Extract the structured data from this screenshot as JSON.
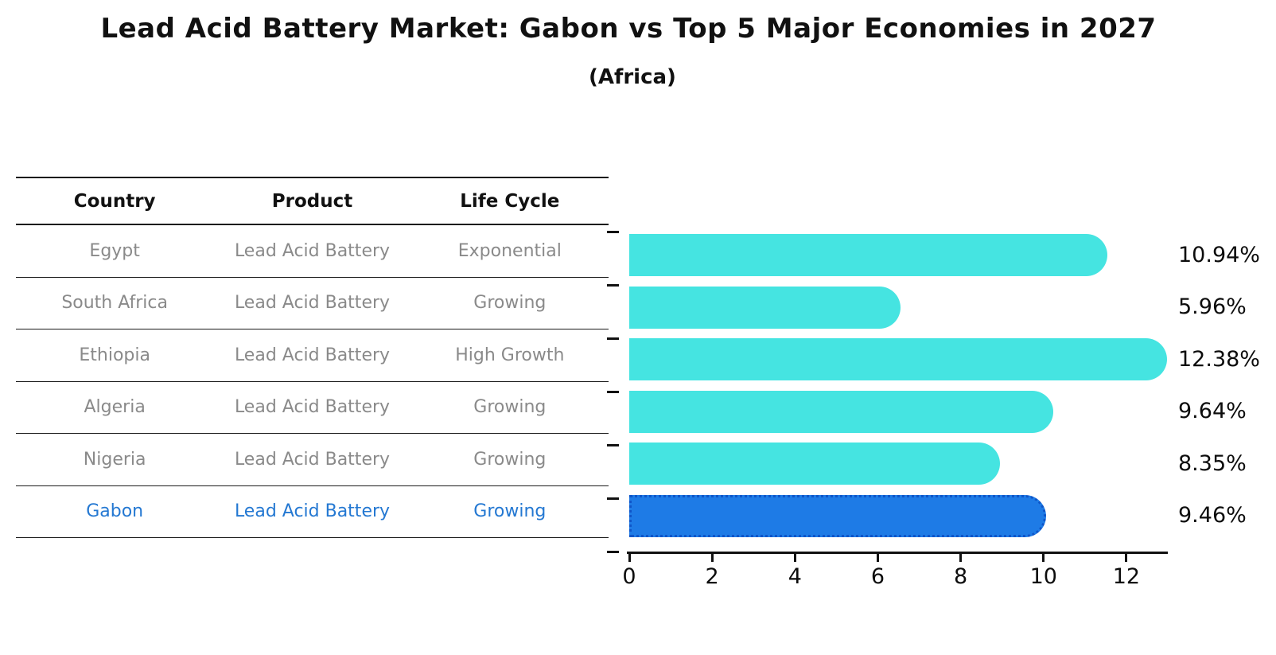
{
  "title": "Lead Acid Battery Market: Gabon vs Top 5 Major Economies in 2027",
  "subtitle": "(Africa)",
  "table": {
    "headers": [
      "Country",
      "Product",
      "Life Cycle"
    ],
    "rows": [
      {
        "country": "Egypt",
        "product": "Lead Acid Battery",
        "life_cycle": "Exponential",
        "highlight": false
      },
      {
        "country": "South Africa",
        "product": "Lead Acid Battery",
        "life_cycle": "Growing",
        "highlight": false
      },
      {
        "country": "Ethiopia",
        "product": "Lead Acid Battery",
        "life_cycle": "High Growth",
        "highlight": false
      },
      {
        "country": "Algeria",
        "product": "Lead Acid Battery",
        "life_cycle": "Growing",
        "highlight": false
      },
      {
        "country": "Nigeria",
        "product": "Lead Acid Battery",
        "life_cycle": "Growing",
        "highlight": false
      },
      {
        "country": "Gabon",
        "product": "Lead Acid Battery",
        "life_cycle": "Growing",
        "highlight": true
      }
    ]
  },
  "chart_data": {
    "type": "bar",
    "orientation": "horizontal",
    "title": "Lead Acid Battery Market: Gabon vs Top 5 Major Economies in 2027",
    "subtitle": "(Africa)",
    "categories": [
      "Egypt",
      "South Africa",
      "Ethiopia",
      "Algeria",
      "Nigeria",
      "Gabon"
    ],
    "values": [
      10.94,
      5.96,
      12.38,
      9.64,
      8.35,
      9.46
    ],
    "data_labels": [
      "10.94%",
      "5.96%",
      "12.38%",
      "9.64%",
      "8.35%",
      "9.46%"
    ],
    "xlabel": "",
    "ylabel": "",
    "xticks": [
      0,
      2,
      4,
      6,
      8,
      10,
      12
    ],
    "xlim": [
      0,
      13
    ],
    "grid": false,
    "legend": false,
    "highlight_index": 5,
    "units": "percent (CAGR %)"
  },
  "colors": {
    "bar_default": "#45e4e1",
    "bar_highlight": "#1e7be6",
    "bar_highlight_border": "#0f55c8",
    "highlight_text": "#2478d2",
    "row_text": "#8a8a8a",
    "header_text": "#111111",
    "axis": "#111111",
    "background": "#ffffff"
  }
}
